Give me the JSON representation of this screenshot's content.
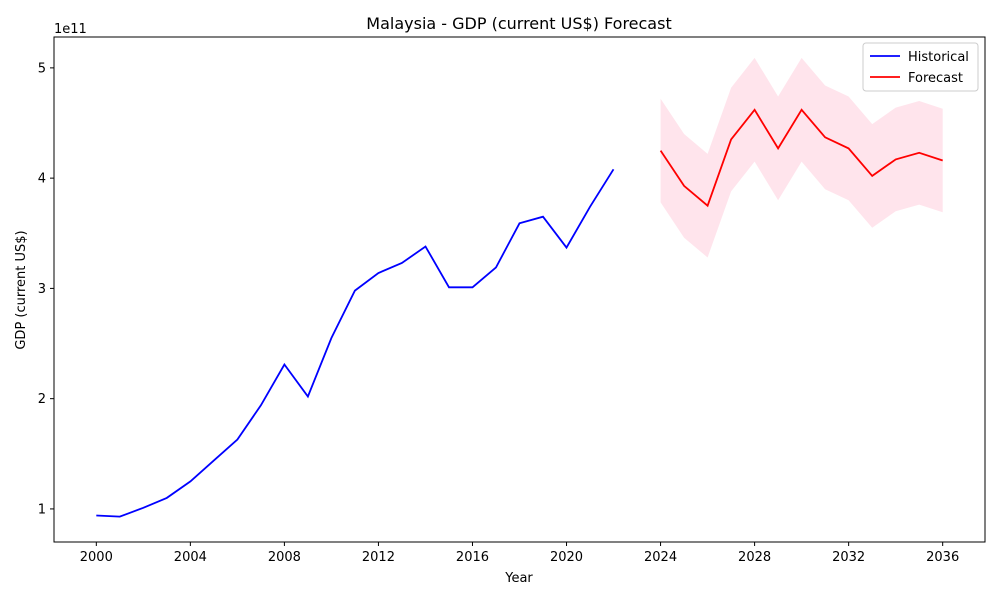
{
  "chart_data": {
    "type": "line",
    "title": "Malaysia - GDP (current US$) Forecast",
    "xlabel": "Year",
    "ylabel": "GDP (current US$)",
    "y_offset_label": "1e11",
    "xlim": [
      1998.2,
      2037.8
    ],
    "ylim": [
      0.7,
      5.28
    ],
    "y_unit_multiplier": 100000000000,
    "xticks": [
      2000,
      2004,
      2008,
      2012,
      2016,
      2020,
      2024,
      2028,
      2032,
      2036
    ],
    "xtick_labels": [
      "2000",
      "2004",
      "2008",
      "2012",
      "2016",
      "2020",
      "2024",
      "2028",
      "2032",
      "2036"
    ],
    "yticks": [
      1,
      2,
      3,
      4,
      5
    ],
    "ytick_labels": [
      "1",
      "2",
      "3",
      "4",
      "5"
    ],
    "grid": false,
    "legend_position": "top-right",
    "series": [
      {
        "name": "Historical",
        "color": "#0000ff",
        "x": [
          2000,
          2001,
          2002,
          2003,
          2004,
          2005,
          2006,
          2007,
          2008,
          2009,
          2010,
          2011,
          2012,
          2013,
          2014,
          2015,
          2016,
          2017,
          2018,
          2019,
          2020,
          2021,
          2022
        ],
        "y": [
          0.94,
          0.93,
          1.01,
          1.1,
          1.25,
          1.44,
          1.63,
          1.94,
          2.31,
          2.02,
          2.55,
          2.98,
          3.14,
          3.23,
          3.38,
          3.01,
          3.01,
          3.19,
          3.59,
          3.65,
          3.37,
          3.74,
          4.08
        ]
      },
      {
        "name": "Forecast",
        "color": "#ff0000",
        "x": [
          2024,
          2025,
          2026,
          2027,
          2028,
          2029,
          2030,
          2031,
          2032,
          2033,
          2034,
          2035,
          2036
        ],
        "y": [
          4.25,
          3.93,
          3.75,
          4.35,
          4.62,
          4.27,
          4.62,
          4.37,
          4.27,
          4.02,
          4.17,
          4.23,
          4.16
        ],
        "lower": [
          3.78,
          3.46,
          3.28,
          3.88,
          4.15,
          3.8,
          4.15,
          3.9,
          3.8,
          3.55,
          3.7,
          3.76,
          3.69
        ],
        "upper": [
          4.72,
          4.4,
          4.22,
          4.82,
          5.09,
          4.74,
          5.09,
          4.84,
          4.74,
          4.49,
          4.64,
          4.7,
          4.63
        ],
        "band_color": "#ffe4ec"
      }
    ]
  }
}
